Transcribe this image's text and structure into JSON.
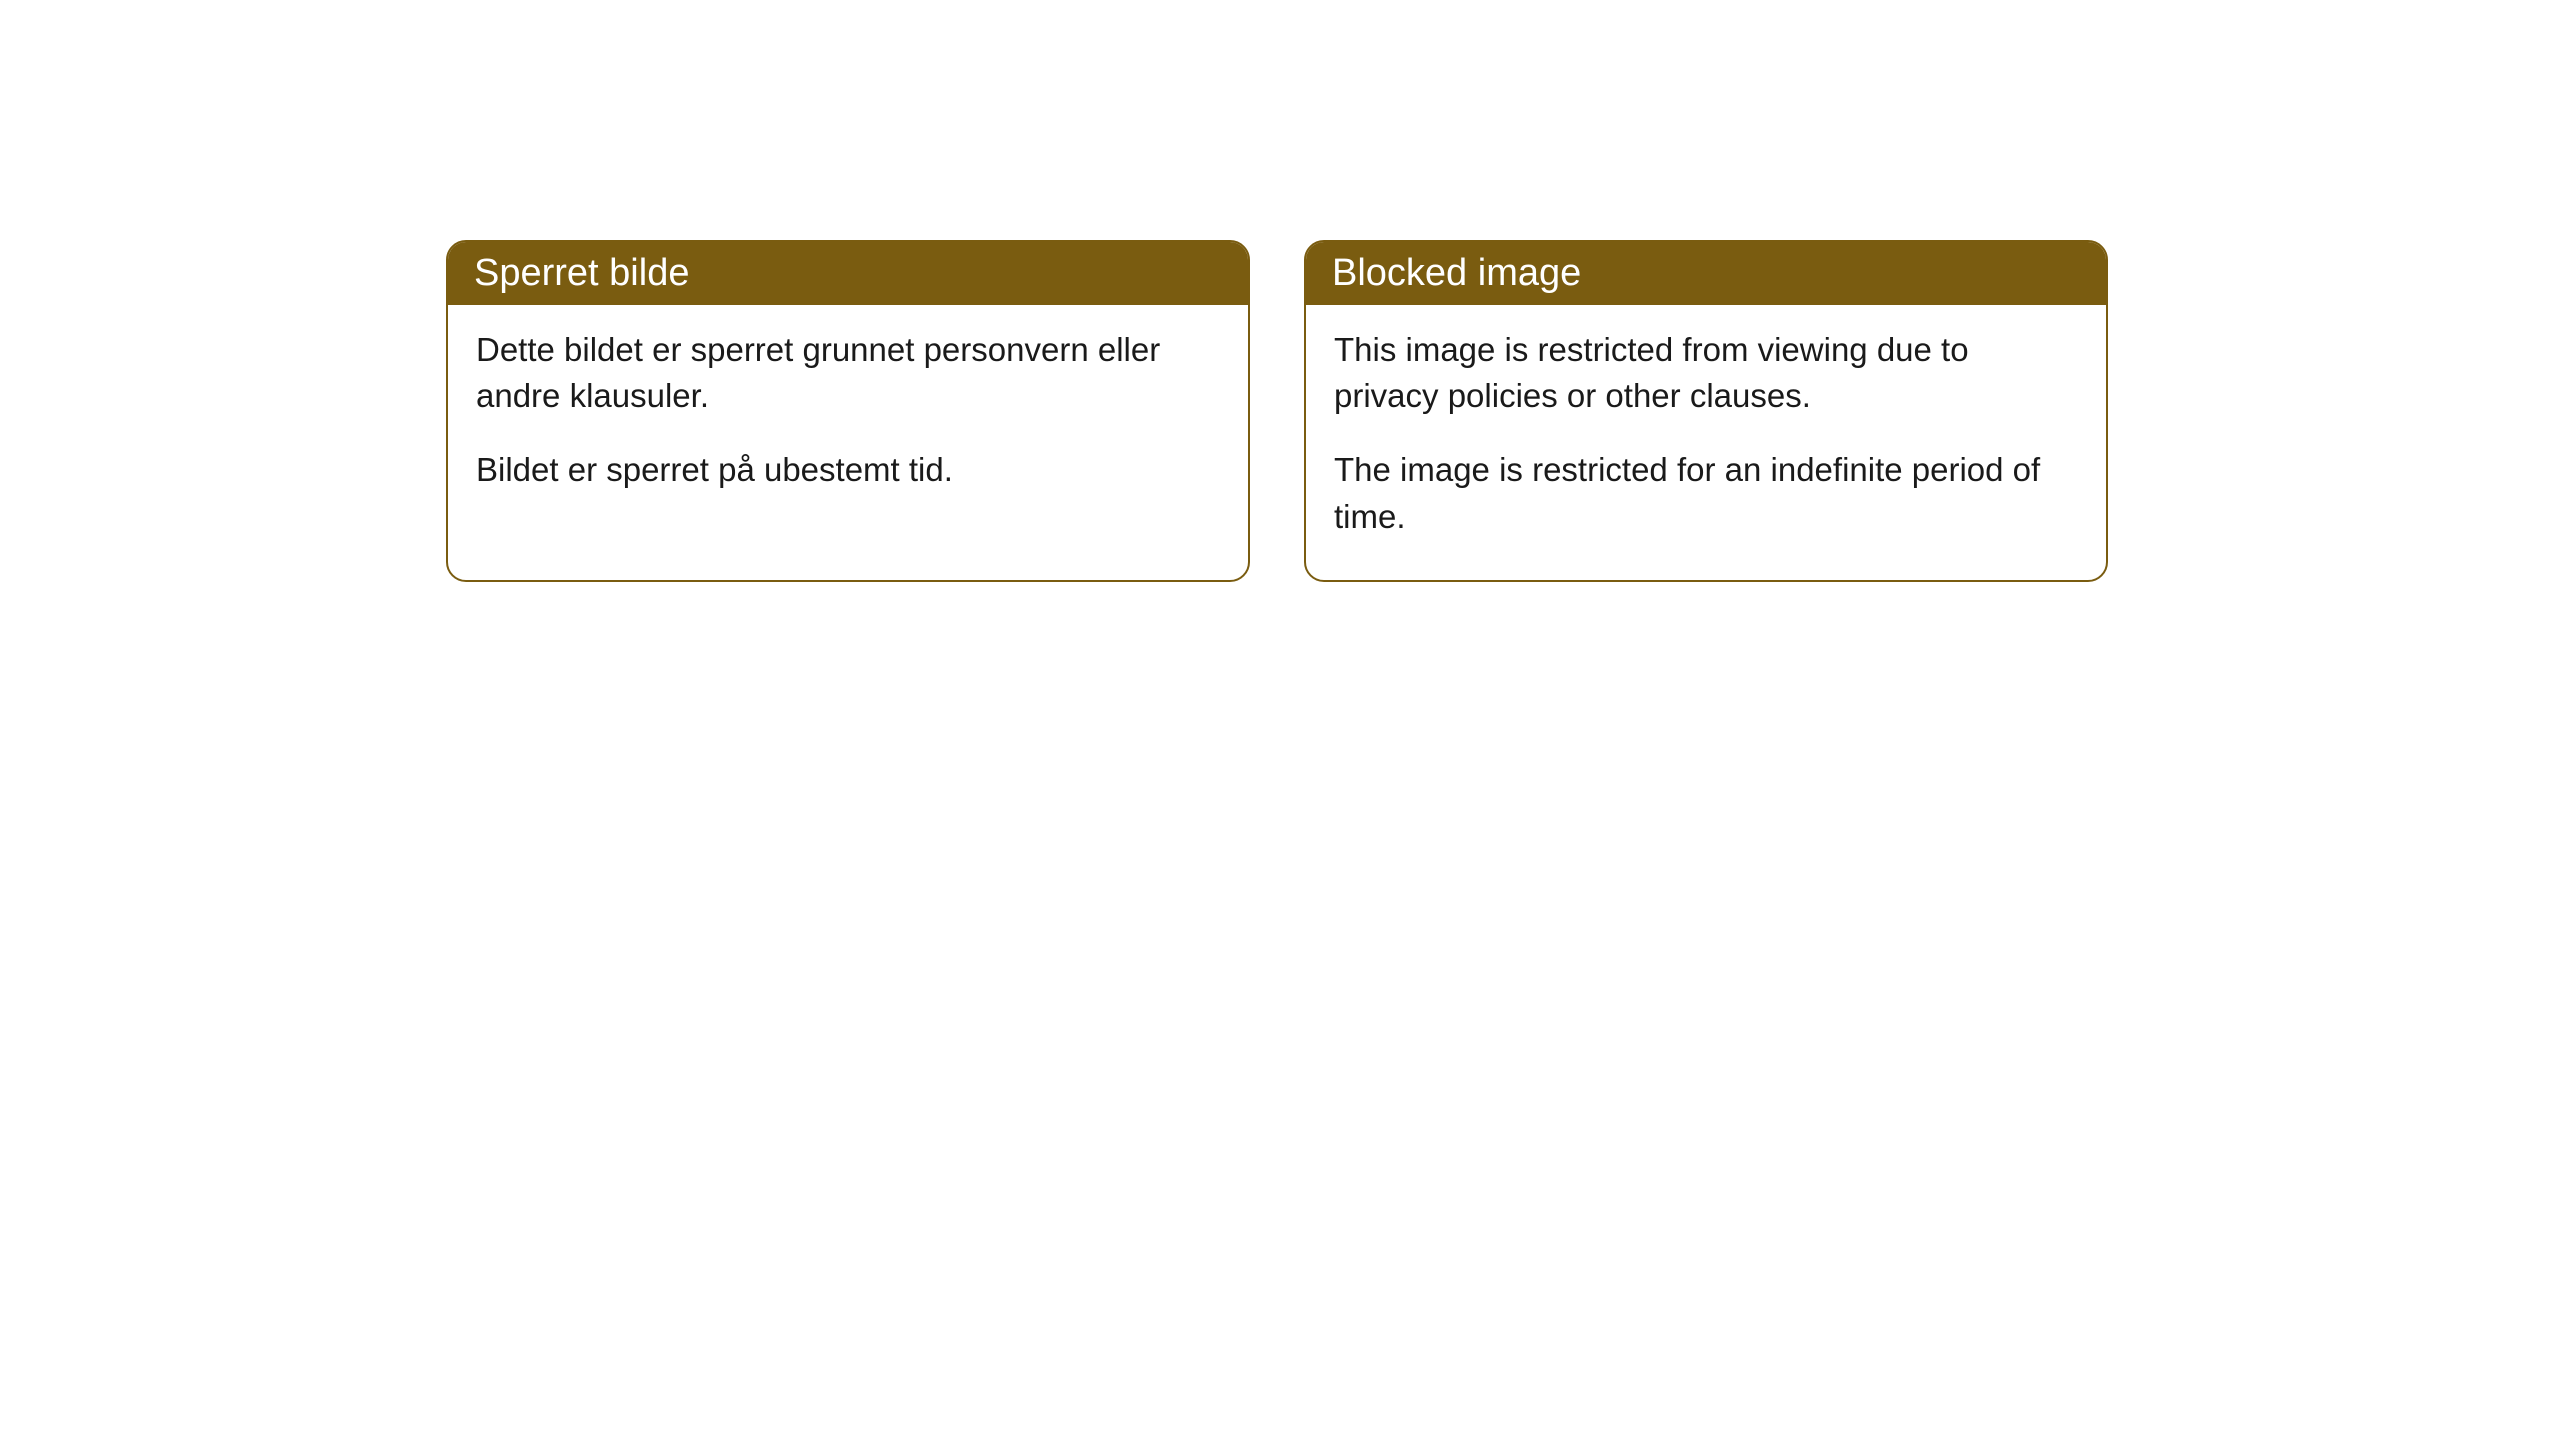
{
  "cards": [
    {
      "title": "Sperret bilde",
      "paragraph1": "Dette bildet er sperret grunnet personvern eller andre klausuler.",
      "paragraph2": "Bildet er sperret på ubestemt tid."
    },
    {
      "title": "Blocked image",
      "paragraph1": "This image is restricted from viewing due to privacy policies or other clauses.",
      "paragraph2": "The image is restricted for an indefinite period of time."
    }
  ],
  "styling": {
    "header_background_color": "#7a5c10",
    "header_text_color": "#ffffff",
    "border_color": "#7a5c10",
    "body_background_color": "#ffffff",
    "body_text_color": "#1a1a1a",
    "border_radius": 20,
    "header_fontsize": 38,
    "body_fontsize": 33
  }
}
